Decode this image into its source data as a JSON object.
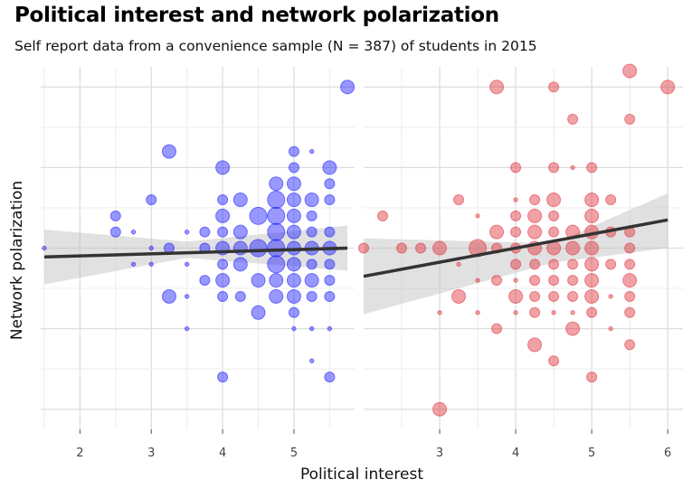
{
  "title": "Political interest and network polarization",
  "subtitle": "Self report data from a convenience sample (N = 387) of students in 2015",
  "chart_data": [
    {
      "type": "scatter",
      "panel": "left",
      "color": "#1a1aff",
      "xlabel": "Political interest",
      "ylabel": "Network polarization",
      "xlim": [
        1.45,
        5.85
      ],
      "ylim": [
        -0.25,
        4.25
      ],
      "x_ticks": [
        "2",
        "3",
        "4",
        "5"
      ],
      "x_tick_values": [
        2,
        3,
        4,
        5
      ],
      "points": [
        {
          "x": 1.5,
          "y": 2,
          "size": 1
        },
        {
          "x": 2.5,
          "y": 2.4,
          "size": 2
        },
        {
          "x": 2.5,
          "y": 2.2,
          "size": 2
        },
        {
          "x": 2.75,
          "y": 2.2,
          "size": 1
        },
        {
          "x": 2.75,
          "y": 1.8,
          "size": 1
        },
        {
          "x": 3,
          "y": 2.6,
          "size": 2
        },
        {
          "x": 3,
          "y": 2,
          "size": 1
        },
        {
          "x": 3,
          "y": 1.8,
          "size": 1
        },
        {
          "x": 3.25,
          "y": 3.2,
          "size": 3
        },
        {
          "x": 3.25,
          "y": 2,
          "size": 2
        },
        {
          "x": 3.25,
          "y": 1.4,
          "size": 3
        },
        {
          "x": 3.5,
          "y": 2.2,
          "size": 1
        },
        {
          "x": 3.5,
          "y": 1.8,
          "size": 1
        },
        {
          "x": 3.5,
          "y": 1.4,
          "size": 1
        },
        {
          "x": 3.5,
          "y": 1,
          "size": 1
        },
        {
          "x": 3.75,
          "y": 2.2,
          "size": 2
        },
        {
          "x": 3.75,
          "y": 2,
          "size": 2
        },
        {
          "x": 3.75,
          "y": 1.6,
          "size": 2
        },
        {
          "x": 4,
          "y": 3,
          "size": 3
        },
        {
          "x": 4,
          "y": 2.6,
          "size": 2
        },
        {
          "x": 4,
          "y": 2.4,
          "size": 3
        },
        {
          "x": 4,
          "y": 2.2,
          "size": 2
        },
        {
          "x": 4,
          "y": 2,
          "size": 3
        },
        {
          "x": 4,
          "y": 1.8,
          "size": 2
        },
        {
          "x": 4,
          "y": 1.6,
          "size": 3
        },
        {
          "x": 4,
          "y": 1.4,
          "size": 2
        },
        {
          "x": 4,
          "y": 0.4,
          "size": 2
        },
        {
          "x": 4.25,
          "y": 2.6,
          "size": 3
        },
        {
          "x": 4.25,
          "y": 2.2,
          "size": 3
        },
        {
          "x": 4.25,
          "y": 2,
          "size": 3
        },
        {
          "x": 4.25,
          "y": 1.8,
          "size": 3
        },
        {
          "x": 4.25,
          "y": 1.4,
          "size": 2
        },
        {
          "x": 4.5,
          "y": 2.4,
          "size": 4
        },
        {
          "x": 4.5,
          "y": 2,
          "size": 4
        },
        {
          "x": 4.5,
          "y": 1.6,
          "size": 3
        },
        {
          "x": 4.5,
          "y": 1.2,
          "size": 3
        },
        {
          "x": 4.75,
          "y": 2.8,
          "size": 3
        },
        {
          "x": 4.75,
          "y": 2.6,
          "size": 4
        },
        {
          "x": 4.75,
          "y": 2.4,
          "size": 4
        },
        {
          "x": 4.75,
          "y": 2.2,
          "size": 4
        },
        {
          "x": 4.75,
          "y": 2,
          "size": 4
        },
        {
          "x": 4.75,
          "y": 1.8,
          "size": 4
        },
        {
          "x": 4.75,
          "y": 1.6,
          "size": 3
        },
        {
          "x": 4.75,
          "y": 1.4,
          "size": 3
        },
        {
          "x": 5,
          "y": 3.2,
          "size": 2
        },
        {
          "x": 5,
          "y": 3,
          "size": 2
        },
        {
          "x": 5,
          "y": 2.8,
          "size": 3
        },
        {
          "x": 5,
          "y": 2.6,
          "size": 3
        },
        {
          "x": 5,
          "y": 2.4,
          "size": 3
        },
        {
          "x": 5,
          "y": 2.2,
          "size": 3
        },
        {
          "x": 5,
          "y": 2,
          "size": 3
        },
        {
          "x": 5,
          "y": 1.8,
          "size": 3
        },
        {
          "x": 5,
          "y": 1.6,
          "size": 3
        },
        {
          "x": 5,
          "y": 1.4,
          "size": 3
        },
        {
          "x": 5,
          "y": 1.2,
          "size": 2
        },
        {
          "x": 5,
          "y": 1,
          "size": 1
        },
        {
          "x": 5.25,
          "y": 3.2,
          "size": 1
        },
        {
          "x": 5.25,
          "y": 2.6,
          "size": 3
        },
        {
          "x": 5.25,
          "y": 2.4,
          "size": 2
        },
        {
          "x": 5.25,
          "y": 2.2,
          "size": 2
        },
        {
          "x": 5.25,
          "y": 2,
          "size": 3
        },
        {
          "x": 5.25,
          "y": 1.8,
          "size": 2
        },
        {
          "x": 5.25,
          "y": 1.6,
          "size": 3
        },
        {
          "x": 5.25,
          "y": 1.4,
          "size": 2
        },
        {
          "x": 5.25,
          "y": 1,
          "size": 1
        },
        {
          "x": 5.25,
          "y": 0.6,
          "size": 1
        },
        {
          "x": 5.5,
          "y": 3,
          "size": 3
        },
        {
          "x": 5.5,
          "y": 2.8,
          "size": 2
        },
        {
          "x": 5.5,
          "y": 2.6,
          "size": 2
        },
        {
          "x": 5.5,
          "y": 2.2,
          "size": 2
        },
        {
          "x": 5.5,
          "y": 2,
          "size": 3
        },
        {
          "x": 5.5,
          "y": 1.8,
          "size": 2
        },
        {
          "x": 5.5,
          "y": 1.6,
          "size": 2
        },
        {
          "x": 5.5,
          "y": 1.4,
          "size": 2
        },
        {
          "x": 5.5,
          "y": 1,
          "size": 1
        },
        {
          "x": 5.5,
          "y": 0.4,
          "size": 2
        },
        {
          "x": 5.75,
          "y": 4,
          "size": 3
        }
      ],
      "trend": {
        "x": [
          1.5,
          5.75
        ],
        "y": [
          1.89,
          2.0
        ]
      },
      "band": {
        "x": [
          1.5,
          3.5,
          5.75
        ],
        "lower": [
          1.55,
          1.88,
          1.72
        ],
        "upper": [
          2.23,
          2.08,
          2.28
        ]
      }
    },
    {
      "type": "scatter",
      "panel": "right",
      "color": "#e0303a",
      "xlabel": "Political interest",
      "ylabel": "Network polarization",
      "xlim": [
        2.0,
        6.2
      ],
      "ylim": [
        -0.25,
        4.25
      ],
      "x_ticks": [
        "3",
        "4",
        "5",
        "6"
      ],
      "x_tick_values": [
        3,
        4,
        5,
        6
      ],
      "points": [
        {
          "x": 2,
          "y": 2,
          "size": 2
        },
        {
          "x": 2.25,
          "y": 2.4,
          "size": 2
        },
        {
          "x": 2.5,
          "y": 2,
          "size": 2
        },
        {
          "x": 2.75,
          "y": 2,
          "size": 2
        },
        {
          "x": 3,
          "y": 2,
          "size": 3
        },
        {
          "x": 3,
          "y": 1.2,
          "size": 1
        },
        {
          "x": 3,
          "y": 0,
          "size": 3
        },
        {
          "x": 3.25,
          "y": 1.4,
          "size": 3
        },
        {
          "x": 3.25,
          "y": 1.8,
          "size": 1
        },
        {
          "x": 3.25,
          "y": 2.6,
          "size": 2
        },
        {
          "x": 3.5,
          "y": 2,
          "size": 4
        },
        {
          "x": 3.5,
          "y": 2.4,
          "size": 1
        },
        {
          "x": 3.5,
          "y": 1.6,
          "size": 1
        },
        {
          "x": 3.5,
          "y": 1.2,
          "size": 1
        },
        {
          "x": 3.75,
          "y": 2.2,
          "size": 3
        },
        {
          "x": 3.75,
          "y": 2,
          "size": 2
        },
        {
          "x": 3.75,
          "y": 1.6,
          "size": 2
        },
        {
          "x": 3.75,
          "y": 1,
          "size": 2
        },
        {
          "x": 3.75,
          "y": 4,
          "size": 3
        },
        {
          "x": 4,
          "y": 3,
          "size": 2
        },
        {
          "x": 4,
          "y": 2.6,
          "size": 1
        },
        {
          "x": 4,
          "y": 2.4,
          "size": 2
        },
        {
          "x": 4,
          "y": 2.2,
          "size": 2
        },
        {
          "x": 4,
          "y": 2,
          "size": 2
        },
        {
          "x": 4,
          "y": 1.8,
          "size": 2
        },
        {
          "x": 4,
          "y": 1.6,
          "size": 1
        },
        {
          "x": 4,
          "y": 1.4,
          "size": 3
        },
        {
          "x": 4,
          "y": 1.2,
          "size": 1
        },
        {
          "x": 4.25,
          "y": 2.6,
          "size": 2
        },
        {
          "x": 4.25,
          "y": 2.4,
          "size": 3
        },
        {
          "x": 4.25,
          "y": 2.2,
          "size": 3
        },
        {
          "x": 4.25,
          "y": 2,
          "size": 3
        },
        {
          "x": 4.25,
          "y": 1.8,
          "size": 2
        },
        {
          "x": 4.25,
          "y": 1.6,
          "size": 2
        },
        {
          "x": 4.25,
          "y": 1.4,
          "size": 2
        },
        {
          "x": 4.25,
          "y": 1.2,
          "size": 2
        },
        {
          "x": 4.25,
          "y": 0.8,
          "size": 3
        },
        {
          "x": 4.5,
          "y": 4,
          "size": 2
        },
        {
          "x": 4.5,
          "y": 3,
          "size": 2
        },
        {
          "x": 4.5,
          "y": 2.6,
          "size": 3
        },
        {
          "x": 4.5,
          "y": 2.4,
          "size": 2
        },
        {
          "x": 4.5,
          "y": 2.2,
          "size": 2
        },
        {
          "x": 4.5,
          "y": 2,
          "size": 3
        },
        {
          "x": 4.5,
          "y": 1.8,
          "size": 2
        },
        {
          "x": 4.5,
          "y": 1.6,
          "size": 2
        },
        {
          "x": 4.5,
          "y": 1.4,
          "size": 2
        },
        {
          "x": 4.5,
          "y": 1.2,
          "size": 1
        },
        {
          "x": 4.5,
          "y": 0.6,
          "size": 2
        },
        {
          "x": 4.75,
          "y": 3.6,
          "size": 2
        },
        {
          "x": 4.75,
          "y": 3,
          "size": 1
        },
        {
          "x": 4.75,
          "y": 2.2,
          "size": 3
        },
        {
          "x": 4.75,
          "y": 2,
          "size": 3
        },
        {
          "x": 4.75,
          "y": 1.8,
          "size": 2
        },
        {
          "x": 4.75,
          "y": 1.6,
          "size": 2
        },
        {
          "x": 4.75,
          "y": 1.4,
          "size": 2
        },
        {
          "x": 4.75,
          "y": 1.2,
          "size": 1
        },
        {
          "x": 4.75,
          "y": 1,
          "size": 3
        },
        {
          "x": 5,
          "y": 3,
          "size": 2
        },
        {
          "x": 5,
          "y": 2.6,
          "size": 3
        },
        {
          "x": 5,
          "y": 2.4,
          "size": 3
        },
        {
          "x": 5,
          "y": 2.2,
          "size": 3
        },
        {
          "x": 5,
          "y": 2,
          "size": 3
        },
        {
          "x": 5,
          "y": 1.8,
          "size": 3
        },
        {
          "x": 5,
          "y": 1.6,
          "size": 3
        },
        {
          "x": 5,
          "y": 1.4,
          "size": 3
        },
        {
          "x": 5,
          "y": 1.2,
          "size": 2
        },
        {
          "x": 5,
          "y": 0.4,
          "size": 2
        },
        {
          "x": 5.25,
          "y": 2.6,
          "size": 2
        },
        {
          "x": 5.25,
          "y": 2.2,
          "size": 2
        },
        {
          "x": 5.25,
          "y": 1.8,
          "size": 2
        },
        {
          "x": 5.25,
          "y": 1.4,
          "size": 1
        },
        {
          "x": 5.25,
          "y": 1,
          "size": 1
        },
        {
          "x": 5.5,
          "y": 4.2,
          "size": 3
        },
        {
          "x": 5.5,
          "y": 3.6,
          "size": 2
        },
        {
          "x": 5.5,
          "y": 2.2,
          "size": 2
        },
        {
          "x": 5.5,
          "y": 2,
          "size": 2
        },
        {
          "x": 5.5,
          "y": 1.8,
          "size": 2
        },
        {
          "x": 5.5,
          "y": 1.6,
          "size": 3
        },
        {
          "x": 5.5,
          "y": 1.4,
          "size": 2
        },
        {
          "x": 5.5,
          "y": 1.2,
          "size": 2
        },
        {
          "x": 5.5,
          "y": 0.8,
          "size": 2
        },
        {
          "x": 6,
          "y": 4,
          "size": 3
        }
      ],
      "trend": {
        "x": [
          2,
          6
        ],
        "y": [
          1.65,
          2.35
        ]
      },
      "band": {
        "x": [
          2,
          4.5,
          6
        ],
        "lower": [
          1.18,
          1.82,
          2.0
        ],
        "upper": [
          2.12,
          2.06,
          2.68
        ]
      }
    }
  ]
}
